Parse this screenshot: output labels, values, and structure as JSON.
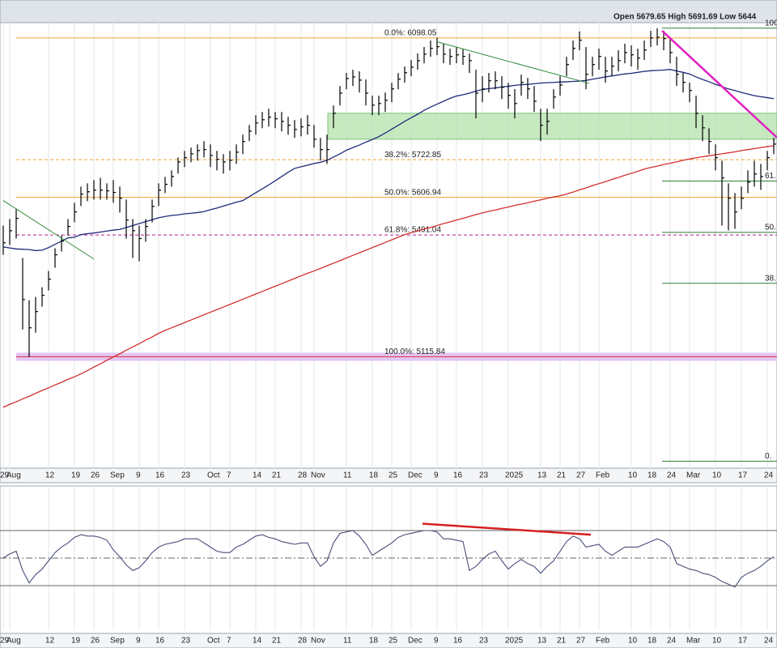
{
  "chart_data": [
    {
      "type": "ohlc",
      "info": "Open 5679.65 High 5691.69 Low 5644",
      "categories": [
        "29",
        "Aug",
        null,
        null,
        null,
        null,
        null,
        "12",
        null,
        null,
        null,
        "19",
        null,
        null,
        "26",
        null,
        null,
        "Sep",
        null,
        null,
        null,
        "9",
        null,
        null,
        "16",
        null,
        null,
        null,
        "23",
        null,
        null,
        null,
        "Oct",
        null,
        null,
        "7",
        null,
        null,
        null,
        "14",
        null,
        null,
        "21",
        null,
        null,
        null,
        "28",
        null,
        "Nov",
        null,
        null,
        null,
        null,
        "11",
        null,
        null,
        null,
        "18",
        null,
        null,
        "25",
        null,
        null,
        "Dec",
        null,
        null,
        null,
        "9",
        null,
        null,
        "16",
        null,
        null,
        null,
        "23",
        null,
        null,
        null,
        "2025",
        null,
        null,
        null,
        null,
        "13",
        null,
        null,
        "21",
        null,
        null,
        "27",
        null,
        null,
        "Feb",
        null,
        null,
        null,
        null,
        "10",
        null,
        null,
        "18",
        null,
        null,
        "24",
        null,
        null,
        "Mar",
        null,
        null,
        null,
        "10",
        null,
        null,
        null,
        "17",
        null,
        null,
        null,
        "24",
        null
      ],
      "high": [
        5520,
        5540,
        5570,
        5420,
        5290,
        5300,
        5330,
        5380,
        5450,
        5490,
        5540,
        5590,
        5640,
        5650,
        5660,
        5667,
        5650,
        5660,
        5640,
        5600,
        5540,
        5520,
        5540,
        5600,
        5650,
        5670,
        5690,
        5730,
        5750,
        5760,
        5770,
        5780,
        5770,
        5750,
        5740,
        5750,
        5770,
        5800,
        5830,
        5860,
        5870,
        5880,
        5870,
        5870,
        5855,
        5845,
        5850,
        5860,
        5830,
        5790,
        5800,
        5890,
        5950,
        5990,
        6000,
        5995,
        5970,
        5920,
        5920,
        5930,
        5960,
        5990,
        6010,
        6030,
        6050,
        6070,
        6090,
        6099,
        6080,
        6065,
        6070,
        6065,
        6050,
        6000,
        5980,
        5990,
        5995,
        5980,
        5960,
        5940,
        5985,
        5975,
        5950,
        5880,
        5880,
        5940,
        5980,
        6040,
        6090,
        6118,
        6070,
        6040,
        6065,
        6040,
        6040,
        6060,
        6080,
        6075,
        6065,
        6090,
        6120,
        6128,
        6120,
        6100,
        6040,
        5990,
        5960,
        5920,
        5860,
        5820,
        5770,
        5720,
        5650,
        5620,
        5640,
        5690,
        5720,
        5710,
        5750,
        5790
      ],
      "low": [
        5430,
        5460,
        5480,
        5200,
        5115,
        5190,
        5270,
        5320,
        5390,
        5440,
        5490,
        5530,
        5580,
        5595,
        5600,
        5600,
        5600,
        5590,
        5560,
        5480,
        5420,
        5410,
        5470,
        5530,
        5580,
        5620,
        5640,
        5680,
        5700,
        5715,
        5720,
        5730,
        5700,
        5690,
        5680,
        5690,
        5710,
        5740,
        5780,
        5800,
        5820,
        5825,
        5820,
        5810,
        5800,
        5790,
        5795,
        5800,
        5760,
        5720,
        5710,
        5820,
        5890,
        5940,
        5950,
        5930,
        5890,
        5860,
        5860,
        5870,
        5900,
        5940,
        5960,
        5980,
        6000,
        6020,
        6040,
        6045,
        6020,
        6015,
        6020,
        6015,
        5990,
        5850,
        5900,
        5930,
        5940,
        5910,
        5880,
        5850,
        5920,
        5910,
        5870,
        5780,
        5800,
        5880,
        5920,
        5980,
        6030,
        6060,
        5940,
        5980,
        6000,
        5960,
        5980,
        5995,
        6020,
        6010,
        6000,
        6030,
        6070,
        6075,
        6060,
        6020,
        5950,
        5930,
        5900,
        5820,
        5780,
        5740,
        5690,
        5520,
        5505,
        5510,
        5570,
        5620,
        5640,
        5630,
        5690,
        5740
      ],
      "close": [
        5467,
        5504,
        5542,
        5292,
        5205,
        5255,
        5305,
        5355,
        5430,
        5472,
        5517,
        5562,
        5617,
        5624,
        5629,
        5629,
        5627,
        5622,
        5604,
        5537,
        5504,
        5480,
        5517,
        5579,
        5629,
        5647,
        5671,
        5716,
        5729,
        5741,
        5751,
        5754,
        5736,
        5724,
        5716,
        5721,
        5746,
        5779,
        5811,
        5836,
        5846,
        5854,
        5849,
        5841,
        5829,
        5816,
        5824,
        5829,
        5786,
        5754,
        5754,
        5866,
        5928,
        5973,
        5978,
        5968,
        5928,
        5891,
        5896,
        5906,
        5941,
        5971,
        5991,
        6008,
        6028,
        6048,
        6066,
        6071,
        6048,
        6041,
        6046,
        6041,
        6028,
        5928,
        5941,
        5966,
        5966,
        5946,
        5921,
        5896,
        5961,
        5941,
        5903,
        5829,
        5841,
        5916,
        5953,
        6016,
        6066,
        6091,
        5986,
        6016,
        6041,
        5996,
        6011,
        6028,
        6053,
        6046,
        6036,
        6061,
        6098,
        6100,
        6096,
        6053,
        5986,
        5961,
        5936,
        5866,
        5821,
        5779,
        5729,
        5667,
        5604,
        5562,
        5604,
        5654,
        5679,
        5671,
        5729,
        5771
      ],
      "bar_color": "#000000",
      "series": [
        {
          "color": "#1f2a7a",
          "values": [
            5454,
            5451,
            5448,
            5447,
            5446,
            5443,
            5444,
            5452,
            5462,
            5472,
            5482,
            5484,
            5492,
            5495,
            5497,
            5500,
            5503,
            5506,
            5508,
            5514,
            5520,
            5526,
            5532,
            5538,
            5544,
            5548,
            5551,
            5553,
            5556,
            5558,
            5560,
            5563,
            5569,
            5574,
            5580,
            5586,
            5592,
            5597,
            5609,
            5621,
            5633,
            5645,
            5658,
            5671,
            5684,
            5696,
            5701,
            5706,
            5711,
            5715,
            5721,
            5731,
            5741,
            5752,
            5760,
            5768,
            5777,
            5785,
            5794,
            5805,
            5817,
            5829,
            5841,
            5852,
            5863,
            5875,
            5885,
            5894,
            5903,
            5912,
            5919,
            5923,
            5928,
            5934,
            5939,
            5942,
            5944,
            5947,
            5949,
            5952,
            5954,
            5955,
            5957,
            5959,
            5960,
            5961,
            5962,
            5963,
            5964,
            5965,
            5967,
            5971,
            5974,
            5978,
            5981,
            5984,
            5987,
            5989,
            5992,
            5995,
            5997,
            5998,
            5999,
            6001,
            5996,
            5992,
            5987,
            5978,
            5970,
            5963,
            5955,
            5948,
            5941,
            5936,
            5930,
            5925,
            5920,
            5917,
            5914,
            5911
          ]
        },
        {
          "color": "#d32f2f",
          "values": [
            4960,
            4969,
            4977,
            4986,
            4994,
            5003,
            5012,
            5020,
            5029,
            5037,
            5046,
            5054,
            5063,
            5073,
            5084,
            5094,
            5105,
            5115,
            5125,
            5136,
            5146,
            5156,
            5167,
            5177,
            5188,
            5197,
            5205,
            5213,
            5221,
            5229,
            5237,
            5245,
            5253,
            5261,
            5269,
            5277,
            5285,
            5293,
            5301,
            5309,
            5317,
            5325,
            5333,
            5341,
            5349,
            5357,
            5365,
            5373,
            5380,
            5388,
            5396,
            5404,
            5412,
            5420,
            5428,
            5436,
            5444,
            5452,
            5460,
            5468,
            5476,
            5484,
            5492,
            5498,
            5503,
            5509,
            5514,
            5520,
            5526,
            5531,
            5537,
            5542,
            5548,
            5554,
            5559,
            5564,
            5568,
            5573,
            5577,
            5582,
            5586,
            5590,
            5595,
            5599,
            5604,
            5608,
            5612,
            5617,
            5623,
            5630,
            5636,
            5643,
            5649,
            5655,
            5662,
            5668,
            5675,
            5681,
            5687,
            5694,
            5699,
            5703,
            5708,
            5712,
            5716,
            5721,
            5725,
            5729,
            5732,
            5735,
            5738,
            5741,
            5744,
            5747,
            5751,
            5754,
            5757,
            5760,
            5763,
            5766
          ]
        }
      ],
      "ylim": [
        4780,
        6145
      ],
      "zones": [
        {
          "from": 5786,
          "to": 5866,
          "color": "#b9e4b0"
        }
      ],
      "fib_levels": [
        {
          "label": "0.0%: 6098.05",
          "value": 6098.05,
          "color": "#f0a030",
          "dash": false
        },
        {
          "label": "38.2%: 5722.85",
          "value": 5722.85,
          "color": "#f0a030",
          "dash": true
        },
        {
          "label": "50.0%: 5606.94",
          "value": 5606.94,
          "color": "#f0a030",
          "dash": false
        },
        {
          "label": "61.8%: 5491.04",
          "value": 5491.04,
          "color": "#b0208f",
          "dash": true
        },
        {
          "label": "100.0%: 5115.84",
          "value": 5115.84,
          "color": "#e03030",
          "dash": false,
          "band": "#e2c6f4"
        }
      ],
      "fib_levels_2": {
        "color": "#2e7d32",
        "levels": [
          {
            "label": "100.",
            "value": 6128
          },
          {
            "label": "61.",
            "value": 5657
          },
          {
            "label": "50.",
            "value": 5499
          },
          {
            "label": "38.",
            "value": 5342
          },
          {
            "label": "0.",
            "value": 4794
          }
        ]
      },
      "trendlines": [
        {
          "color": "#2e8b3a",
          "width": 1,
          "from": [
            0,
            5597
          ],
          "to": [
            14,
            5417
          ]
        },
        {
          "color": "#2e8b3a",
          "width": 1,
          "from": [
            67,
            6086
          ],
          "to": [
            90.5,
            5958
          ]
        },
        {
          "color": "#e020c0",
          "width": 2.5,
          "from": [
            101.75,
            6120
          ],
          "to": [
            119.5,
            5791
          ]
        }
      ]
    },
    {
      "type": "line",
      "series": [
        {
          "color": "#4a4f7a",
          "values": [
            50,
            53,
            55,
            41,
            32,
            38,
            42,
            48,
            54,
            58,
            61,
            65,
            67,
            66,
            66,
            65,
            63,
            56,
            51,
            45,
            41,
            43,
            48,
            54,
            58,
            60,
            61,
            62,
            64,
            64,
            64,
            61,
            58,
            55,
            54,
            54,
            58,
            60,
            63,
            66,
            67,
            65,
            64,
            62,
            61,
            60,
            61,
            61,
            51,
            44,
            48,
            61,
            68,
            69,
            70,
            66,
            60,
            52,
            55,
            58,
            61,
            65,
            67,
            68,
            69,
            70,
            70,
            69,
            64,
            64,
            63,
            62,
            41,
            44,
            49,
            53,
            55,
            48,
            42,
            46,
            49,
            46,
            44,
            39,
            44,
            48,
            55,
            62,
            66,
            64,
            58,
            59,
            60,
            55,
            52,
            55,
            58,
            58,
            58,
            60,
            62,
            64,
            62,
            58,
            46,
            44,
            42,
            41,
            39,
            38,
            36,
            33,
            31,
            29,
            36,
            39,
            41,
            44,
            48,
            51
          ]
        }
      ],
      "ylim": [
        0,
        100
      ],
      "ref_lines": [
        70,
        50,
        30
      ],
      "trendlines": [
        {
          "color": "#d62020",
          "width": 2.5,
          "from": [
            64.75,
            75
          ],
          "to": [
            90.75,
            67
          ]
        }
      ]
    }
  ]
}
